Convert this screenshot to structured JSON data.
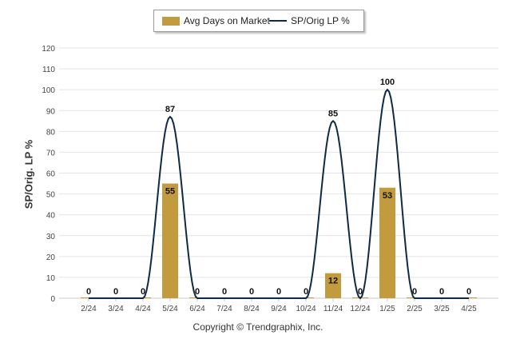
{
  "chart_data": {
    "type": "bar+line",
    "categories": [
      "2/24",
      "3/24",
      "4/24",
      "5/24",
      "6/24",
      "7/24",
      "8/24",
      "9/24",
      "10/24",
      "11/24",
      "12/24",
      "1/25",
      "2/25",
      "3/25",
      "4/25"
    ],
    "series": [
      {
        "name": "Avg Days on Market",
        "type": "bar",
        "color": "#c29b3e",
        "values": [
          0,
          0,
          0,
          55,
          0,
          0,
          0,
          0,
          0,
          12,
          0,
          53,
          0,
          0,
          0
        ]
      },
      {
        "name": "SP/Orig LP %",
        "type": "line",
        "color": "#0e2a47",
        "values": [
          0,
          0,
          0,
          87,
          0,
          0,
          0,
          0,
          0,
          85,
          0,
          100,
          0,
          0,
          0
        ]
      }
    ],
    "ylabel": "SP/Orig. LP %",
    "ylim": [
      0,
      120
    ],
    "yticks": [
      0,
      10,
      20,
      30,
      40,
      50,
      60,
      70,
      80,
      90,
      100,
      110,
      120
    ],
    "grid": true,
    "legend_position": "top-center"
  },
  "footer": {
    "copyright": "Copyright © Trendgraphix, Inc."
  }
}
